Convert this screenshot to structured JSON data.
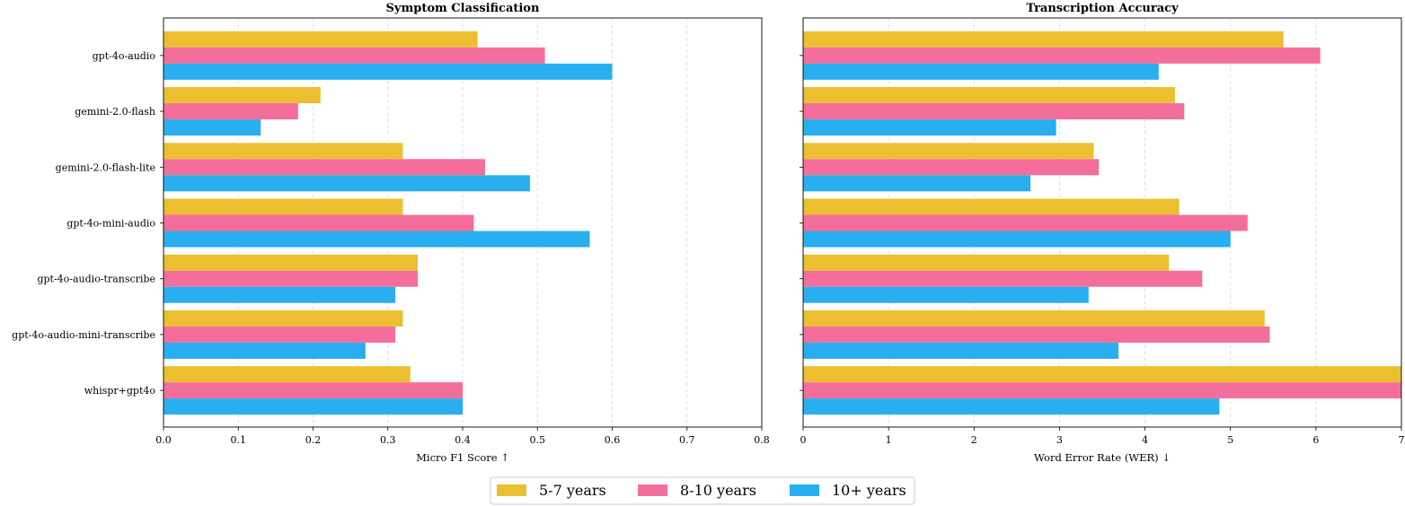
{
  "chart_data": [
    {
      "type": "bar",
      "orientation": "horizontal",
      "title": "Symptom Classification",
      "xlabel": "Micro F1 Score ↑",
      "ylabel": "",
      "xlim": [
        0,
        0.8
      ],
      "xticks": [
        "0.0",
        "0.1",
        "0.2",
        "0.3",
        "0.4",
        "0.5",
        "0.6",
        "0.7",
        "0.8"
      ],
      "grid": "vertical dashed",
      "categories": [
        "gpt-4o-audio",
        "gemini-2.0-flash",
        "gemini-2.0-flash-lite",
        "gpt-4o-mini-audio",
        "gpt-4o-audio-transcribe",
        "gpt-4o-audio-mini-transcribe",
        "whispr+gpt4o"
      ],
      "series": [
        {
          "name": "5-7 years",
          "color": "#EBBF30",
          "values": [
            0.42,
            0.21,
            0.32,
            0.32,
            0.34,
            0.32,
            0.33
          ]
        },
        {
          "name": "8-10 years",
          "color": "#F46E9B",
          "values": [
            0.51,
            0.18,
            0.43,
            0.415,
            0.34,
            0.31,
            0.4
          ]
        },
        {
          "name": "10+ years",
          "color": "#29AEEF",
          "values": [
            0.6,
            0.13,
            0.49,
            0.57,
            0.31,
            0.27,
            0.4
          ]
        }
      ]
    },
    {
      "type": "bar",
      "orientation": "horizontal",
      "title": "Transcription Accuracy",
      "xlabel": "Word Error Rate (WER) ↓",
      "ylabel": "",
      "xlim": [
        0,
        7
      ],
      "xticks": [
        "0",
        "1",
        "2",
        "3",
        "4",
        "5",
        "6",
        "7"
      ],
      "grid": "vertical dashed",
      "categories": [
        "gpt-4o-audio",
        "gemini-2.0-flash",
        "gemini-2.0-flash-lite",
        "gpt-4o-mini-audio",
        "gpt-4o-audio-transcribe",
        "gpt-4o-audio-mini-transcribe",
        "whispr+gpt4o"
      ],
      "series": [
        {
          "name": "5-7 years",
          "color": "#EBBF30",
          "values": [
            5.62,
            4.35,
            3.4,
            4.4,
            4.28,
            5.4,
            7.0
          ]
        },
        {
          "name": "8-10 years",
          "color": "#F46E9B",
          "values": [
            6.05,
            4.46,
            3.46,
            5.2,
            4.67,
            5.46,
            7.0
          ]
        },
        {
          "name": "10+ years",
          "color": "#29AEEF",
          "values": [
            4.16,
            2.96,
            2.66,
            5.0,
            3.34,
            3.69,
            4.87
          ]
        }
      ]
    }
  ],
  "legend": {
    "position": "bottom-center",
    "items": [
      {
        "label": "5-7 years",
        "color": "#EBBF30"
      },
      {
        "label": "8-10 years",
        "color": "#F46E9B"
      },
      {
        "label": "10+ years",
        "color": "#29AEEF"
      }
    ]
  }
}
